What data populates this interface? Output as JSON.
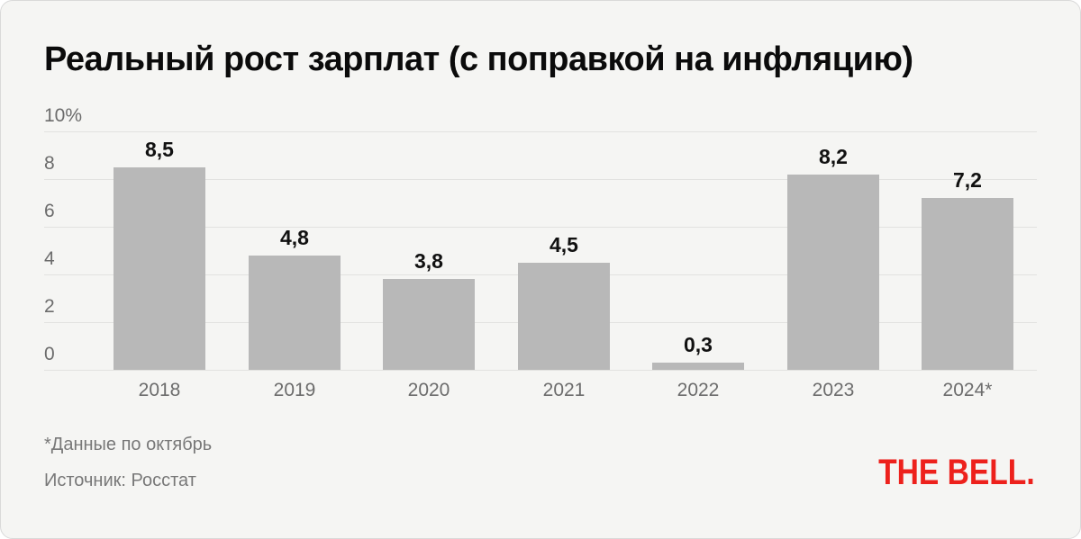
{
  "title": "Реальный рост зарплат (с поправкой на инфляцию)",
  "footnote": "*Данные по октябрь",
  "source": "Источник: Росстат",
  "logo": "THE BELL.",
  "colors": {
    "card_background": "#f5f5f3",
    "bar": "#b8b8b8",
    "gridline": "#e2e2e0",
    "axis_text": "#6c6c6c",
    "value_text": "#111111",
    "title_text": "#0b0b0b",
    "footnote_text": "#787878",
    "logo_red": "#ed211c"
  },
  "chart_data": {
    "type": "bar",
    "title": "Реальный рост зарплат (с поправкой на инфляцию)",
    "categories": [
      "2018",
      "2019",
      "2020",
      "2021",
      "2022",
      "2023",
      "2024*"
    ],
    "values": [
      8.5,
      4.8,
      3.8,
      4.5,
      0.3,
      8.2,
      7.2
    ],
    "value_labels": [
      "8,5",
      "4,8",
      "3,8",
      "4,5",
      "0,3",
      "8,2",
      "7,2"
    ],
    "xlabel": "",
    "ylabel": "",
    "ylim": [
      0,
      10
    ],
    "yticks": [
      {
        "value": 10,
        "label": "10%"
      },
      {
        "value": 8,
        "label": "8"
      },
      {
        "value": 6,
        "label": "6"
      },
      {
        "value": 4,
        "label": "4"
      },
      {
        "value": 2,
        "label": "2"
      },
      {
        "value": 0,
        "label": "0"
      }
    ],
    "grid": "horizontal",
    "legend": "none",
    "bar_color": "#b8b8b8"
  }
}
